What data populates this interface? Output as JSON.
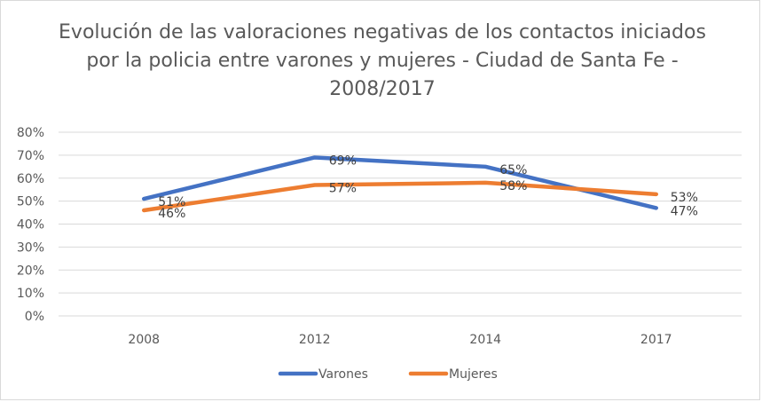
{
  "chart_data": {
    "type": "line",
    "title": "Evolución de las valoraciones negativas de los contactos iniciados por la policia entre varones y mujeres - Ciudad de Santa Fe - 2008/2017",
    "categories": [
      "2008",
      "2012",
      "2014",
      "2017"
    ],
    "ylim": [
      0,
      80
    ],
    "yticks": [
      0,
      10,
      20,
      30,
      40,
      50,
      60,
      70,
      80
    ],
    "ytick_labels": [
      "0%",
      "10%",
      "20%",
      "30%",
      "40%",
      "50%",
      "60%",
      "70%",
      "80%"
    ],
    "grid": true,
    "legend_position": "bottom",
    "series": [
      {
        "name": "Varones",
        "color": "#4472c4",
        "values": [
          51,
          69,
          65,
          47
        ],
        "labels": [
          "51%",
          "69%",
          "65%",
          "47%"
        ]
      },
      {
        "name": "Mujeres",
        "color": "#ed7d31",
        "values": [
          46,
          57,
          58,
          53
        ],
        "labels": [
          "46%",
          "57%",
          "58%",
          "53%"
        ]
      }
    ]
  }
}
